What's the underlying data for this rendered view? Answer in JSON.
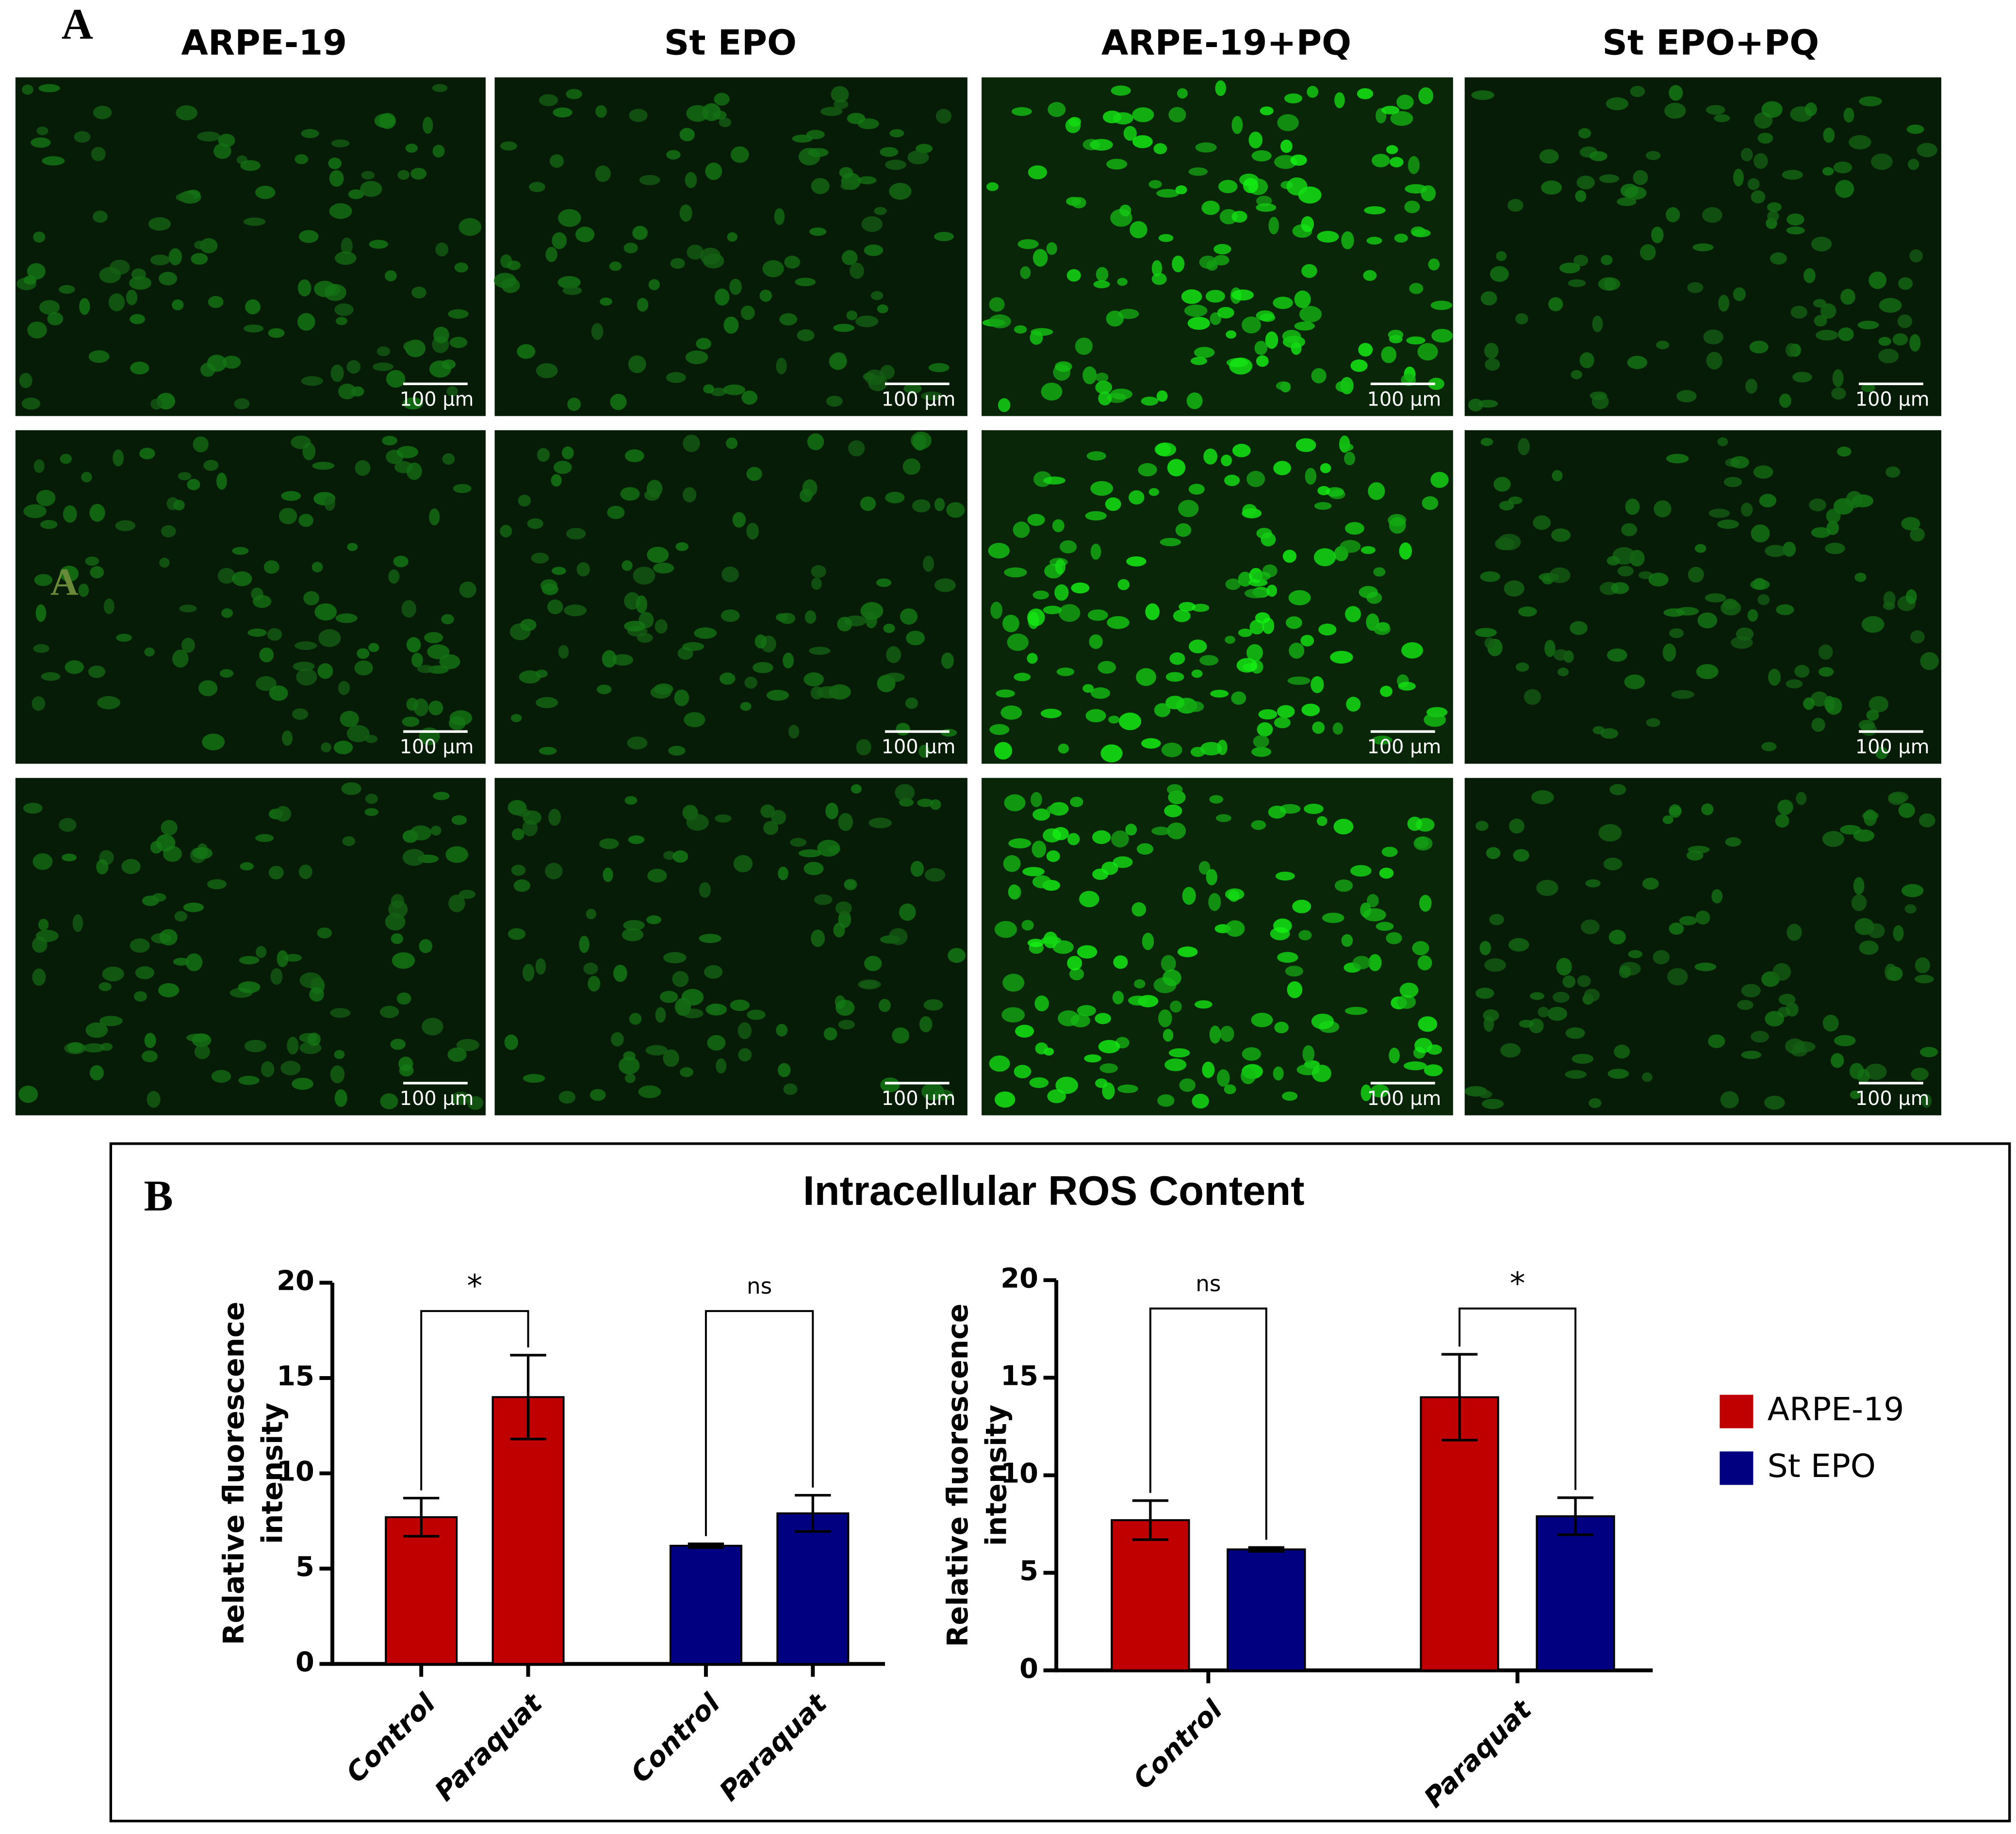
{
  "panel_a": {
    "label": "A",
    "overlay_label": "A",
    "columns": [
      "ARPE-19",
      "St EPO",
      "ARPE-19+PQ",
      "St EPO+PQ"
    ],
    "scale_bar": "100 μm"
  },
  "panel_b": {
    "label": "B",
    "title": "Intracellular ROS Content"
  },
  "chart_data": [
    {
      "type": "bar",
      "categories": [
        "Control",
        "Paraquat",
        "Control",
        "Paraquat"
      ],
      "values": [
        7.7,
        14.0,
        6.2,
        7.9
      ],
      "errors": [
        1.0,
        2.2,
        0.1,
        0.95
      ],
      "colors": [
        "#c00000",
        "#c00000",
        "#000080",
        "#000080"
      ],
      "ylabel": [
        "Relative fluorescence",
        "intensity"
      ],
      "ylim": [
        0,
        20
      ],
      "yticks": [
        0,
        5,
        10,
        15,
        20
      ],
      "annotations": [
        "*",
        "ns"
      ]
    },
    {
      "type": "bar",
      "categories": [
        "Control",
        "Paraquat"
      ],
      "series": [
        {
          "name": "ARPE-19",
          "color": "#c00000",
          "values": [
            7.7,
            14.0
          ],
          "errors": [
            1.0,
            2.2
          ]
        },
        {
          "name": "St EPO",
          "color": "#000080",
          "values": [
            6.2,
            7.9
          ],
          "errors": [
            0.1,
            0.95
          ]
        }
      ],
      "ylabel": [
        "Relative fluorescence",
        "intensity"
      ],
      "ylim": [
        0,
        20
      ],
      "yticks": [
        0,
        5,
        10,
        15,
        20
      ],
      "annotations": [
        "ns",
        "*"
      ],
      "legend": "right"
    }
  ]
}
